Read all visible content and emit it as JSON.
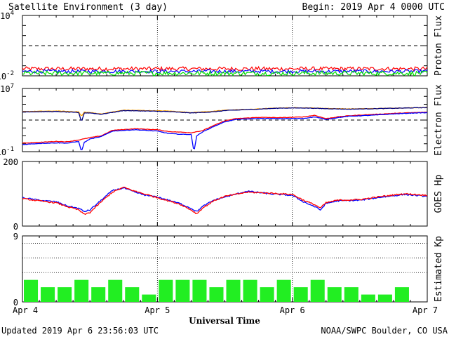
{
  "title": "Satellite Environment (3 day)",
  "begin": "Begin:  2019 Apr 4 0000 UTC",
  "footer_left": "Updated 2019 Apr  6 23:56:03 UTC",
  "footer_right": "NOAA/SWPC Boulder, CO USA",
  "x_axis_title": "Universal Time",
  "colors": {
    "proton_red": "#ff0000",
    "proton_blue": "#0000ff",
    "proton_green": "#00e000",
    "electron_orange": "#ffa500",
    "electron_navy": "#000080",
    "kp_bar": "#22ee22"
  },
  "chart_data": [
    {
      "type": "line",
      "ylabel": "Proton Flux",
      "yscale": "log",
      "ylim": [
        0.01,
        10000
      ],
      "tick_labels": [
        {
          "base": "10",
          "exp": "4",
          "value": 10000
        },
        {
          "base": "10",
          "exp": "-2",
          "value": 0.01
        }
      ],
      "threshold": 10,
      "xlim": [
        0,
        72
      ],
      "series": [
        {
          "color": "red",
          "level": 0.05,
          "noise": 0.4
        },
        {
          "color": "blue",
          "level": 0.028,
          "noise": 0.35
        },
        {
          "color": "green",
          "level": 0.018,
          "noise": 0.45
        }
      ]
    },
    {
      "type": "line",
      "ylabel": "Electron Flux",
      "yscale": "log",
      "ylim": [
        0.1,
        10000000
      ],
      "tick_labels": [
        {
          "base": "10",
          "exp": "7",
          "value": 10000000
        },
        {
          "base": "10",
          "exp": "-1",
          "value": 0.1
        }
      ],
      "threshold": 1000,
      "xlim": [
        0,
        72
      ],
      "series": [
        {
          "color": "orange",
          "x": [
            0,
            6,
            10,
            10.5,
            11,
            12,
            14,
            18,
            22,
            26,
            30,
            34,
            36,
            40,
            46,
            50,
            54,
            58,
            62,
            66,
            72
          ],
          "y": [
            12000,
            14000,
            11000,
            3000,
            10000,
            9000,
            6000,
            18000,
            16000,
            14000,
            9000,
            13000,
            18000,
            22000,
            35000,
            36000,
            30000,
            26000,
            28000,
            32000,
            40000
          ]
        },
        {
          "color": "navy",
          "x": [
            0,
            6,
            10,
            10.5,
            11,
            12,
            14,
            18,
            22,
            26,
            30,
            34,
            36,
            40,
            46,
            50,
            54,
            58,
            62,
            66,
            72
          ],
          "y": [
            11000,
            12000,
            9000,
            600,
            8000,
            8000,
            5500,
            16000,
            14000,
            12000,
            8000,
            11000,
            16000,
            21000,
            33000,
            34000,
            28000,
            24000,
            27000,
            31000,
            38000
          ]
        },
        {
          "color": "red",
          "x": [
            0,
            3,
            6,
            8,
            10,
            12,
            14,
            16,
            20,
            24,
            26,
            28,
            30,
            32,
            34,
            36,
            38,
            42,
            46,
            50,
            52,
            54,
            56,
            58,
            62,
            66,
            70,
            72
          ],
          "y": [
            1.2,
            1.5,
            2,
            1.8,
            3,
            6,
            10,
            50,
            80,
            60,
            35,
            30,
            25,
            45,
            200,
            800,
            1500,
            2200,
            2000,
            2500,
            4000,
            1500,
            2500,
            3500,
            5000,
            7000,
            9000,
            9500
          ]
        },
        {
          "color": "blue",
          "x": [
            0,
            3,
            6,
            8,
            10,
            10.5,
            11,
            12,
            14,
            16,
            20,
            24,
            26,
            28,
            30,
            30.5,
            31,
            32,
            34,
            36,
            38,
            42,
            46,
            50,
            52,
            54,
            56,
            58,
            62,
            66,
            70,
            72
          ],
          "y": [
            0.8,
            1.1,
            1.3,
            1.2,
            2,
            0.1,
            1.5,
            4,
            8,
            40,
            60,
            40,
            20,
            16,
            15,
            0.1,
            10,
            30,
            150,
            600,
            1200,
            1600,
            1500,
            1600,
            2500,
            1200,
            2000,
            3000,
            4000,
            6000,
            8000,
            8500
          ]
        }
      ]
    },
    {
      "type": "line",
      "ylabel": "GOES Hp",
      "ylim": [
        0,
        200
      ],
      "tick_labels": [
        {
          "base": "200",
          "exp": "",
          "value": 200
        },
        {
          "base": "0",
          "exp": "",
          "value": 0
        }
      ],
      "xlim": [
        0,
        72
      ],
      "series": [
        {
          "color": "blue",
          "x": [
            0,
            3,
            6,
            8,
            10,
            11,
            12,
            14,
            16,
            18,
            20,
            22,
            24,
            26,
            28,
            30,
            31,
            32,
            34,
            36,
            40,
            44,
            48,
            50,
            52,
            53,
            54,
            56,
            60,
            64,
            68,
            72
          ],
          "y": [
            88,
            80,
            75,
            62,
            55,
            45,
            50,
            80,
            110,
            118,
            105,
            95,
            90,
            80,
            70,
            55,
            45,
            60,
            80,
            90,
            108,
            100,
            95,
            75,
            60,
            50,
            70,
            78,
            80,
            90,
            98,
            92
          ]
        },
        {
          "color": "red",
          "x": [
            0,
            3,
            6,
            8,
            10,
            11,
            12,
            14,
            16,
            18,
            20,
            22,
            24,
            26,
            28,
            30,
            31,
            32,
            34,
            36,
            40,
            44,
            48,
            50,
            52,
            53,
            54,
            56,
            60,
            64,
            68,
            72
          ],
          "y": [
            85,
            78,
            72,
            60,
            50,
            36,
            42,
            75,
            105,
            120,
            108,
            98,
            88,
            78,
            68,
            50,
            38,
            55,
            78,
            92,
            105,
            102,
            98,
            80,
            66,
            56,
            72,
            80,
            82,
            92,
            100,
            95
          ]
        }
      ]
    },
    {
      "type": "bar",
      "ylabel": "Estimated Kp",
      "ylim": [
        0,
        9
      ],
      "tick_labels": [
        {
          "base": "9",
          "exp": "",
          "value": 9
        },
        {
          "base": "0",
          "exp": "",
          "value": 0
        }
      ],
      "bin_hours": 3,
      "values": [
        3,
        2,
        2,
        3,
        2,
        3,
        2,
        1,
        3,
        3,
        3,
        2,
        3,
        3,
        2,
        3,
        2,
        3,
        2,
        2,
        1,
        1,
        2,
        0
      ]
    }
  ],
  "x_ticks": [
    "Apr 4",
    "Apr 5",
    "Apr 6",
    "Apr 7"
  ]
}
